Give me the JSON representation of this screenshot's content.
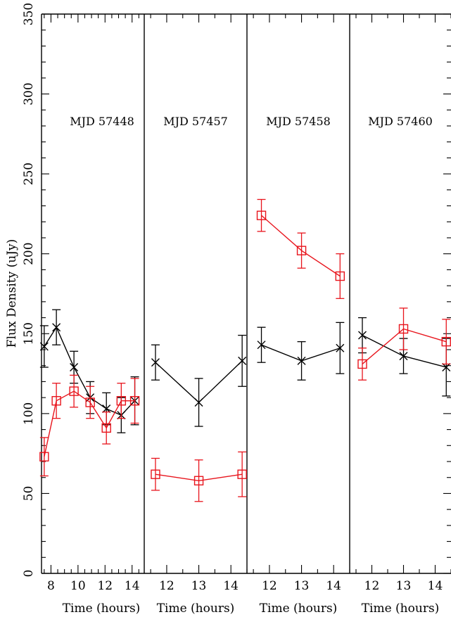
{
  "chart_data": {
    "type": "scatter",
    "ylabel": "Flux Density (uJy)",
    "ylim": [
      0,
      350
    ],
    "yticks": [
      0,
      50,
      100,
      150,
      200,
      250,
      300,
      350
    ],
    "series_colors": [
      "#000000",
      "#e8141c"
    ],
    "panels": [
      {
        "label": "MJD 57448",
        "xlabel": "Time (hours)",
        "xlim": [
          7.3,
          14.9
        ],
        "xticks": [
          8,
          10,
          12,
          14
        ],
        "series": [
          {
            "marker": "cross",
            "color": "#000000",
            "points": [
              {
                "x": 7.5,
                "y": 142,
                "err": 13
              },
              {
                "x": 8.4,
                "y": 154,
                "err": 11
              },
              {
                "x": 9.7,
                "y": 129,
                "err": 10
              },
              {
                "x": 10.9,
                "y": 110,
                "err": 10
              },
              {
                "x": 12.1,
                "y": 103,
                "err": 10
              },
              {
                "x": 13.2,
                "y": 99,
                "err": 11
              },
              {
                "x": 14.2,
                "y": 108,
                "err": 15
              }
            ]
          },
          {
            "marker": "square",
            "color": "#e8141c",
            "points": [
              {
                "x": 7.5,
                "y": 73,
                "err": 12
              },
              {
                "x": 8.4,
                "y": 108,
                "err": 11
              },
              {
                "x": 9.7,
                "y": 114,
                "err": 10
              },
              {
                "x": 10.9,
                "y": 107,
                "err": 10
              },
              {
                "x": 12.1,
                "y": 91,
                "err": 10
              },
              {
                "x": 13.2,
                "y": 108,
                "err": 11
              },
              {
                "x": 14.2,
                "y": 108,
                "err": 14
              }
            ]
          }
        ]
      },
      {
        "label": "MJD 57457",
        "xlabel": "Time (hours)",
        "xlim": [
          11.3,
          14.5
        ],
        "xticks": [
          12,
          13,
          14
        ],
        "series": [
          {
            "marker": "cross",
            "color": "#000000",
            "points": [
              {
                "x": 11.65,
                "y": 132,
                "err": 11
              },
              {
                "x": 13.0,
                "y": 107,
                "err": 15
              },
              {
                "x": 14.35,
                "y": 133,
                "err": 16
              }
            ]
          },
          {
            "marker": "square",
            "color": "#e8141c",
            "points": [
              {
                "x": 11.65,
                "y": 62,
                "err": 10
              },
              {
                "x": 13.0,
                "y": 58,
                "err": 13
              },
              {
                "x": 14.35,
                "y": 62,
                "err": 14
              }
            ]
          }
        ]
      },
      {
        "label": "MJD 57458",
        "xlabel": "Time (hours)",
        "xlim": [
          11.3,
          14.5
        ],
        "xticks": [
          12,
          13,
          14
        ],
        "series": [
          {
            "marker": "cross",
            "color": "#000000",
            "points": [
              {
                "x": 11.75,
                "y": 143,
                "err": 11
              },
              {
                "x": 13.0,
                "y": 133,
                "err": 12
              },
              {
                "x": 14.2,
                "y": 141,
                "err": 16
              }
            ]
          },
          {
            "marker": "square",
            "color": "#e8141c",
            "points": [
              {
                "x": 11.75,
                "y": 224,
                "err": 10
              },
              {
                "x": 13.0,
                "y": 202,
                "err": 11
              },
              {
                "x": 14.2,
                "y": 186,
                "err": 14
              }
            ]
          }
        ]
      },
      {
        "label": "MJD 57460",
        "xlabel": "Time (hours)",
        "xlim": [
          11.3,
          14.5
        ],
        "xticks": [
          12,
          13,
          14
        ],
        "series": [
          {
            "marker": "cross",
            "color": "#000000",
            "points": [
              {
                "x": 11.7,
                "y": 149,
                "err": 11
              },
              {
                "x": 13.0,
                "y": 136,
                "err": 11
              },
              {
                "x": 14.35,
                "y": 129,
                "err": 18
              }
            ]
          },
          {
            "marker": "square",
            "color": "#e8141c",
            "points": [
              {
                "x": 11.7,
                "y": 131,
                "err": 10
              },
              {
                "x": 13.0,
                "y": 153,
                "err": 13
              },
              {
                "x": 14.35,
                "y": 145,
                "err": 14
              }
            ]
          }
        ]
      }
    ]
  }
}
